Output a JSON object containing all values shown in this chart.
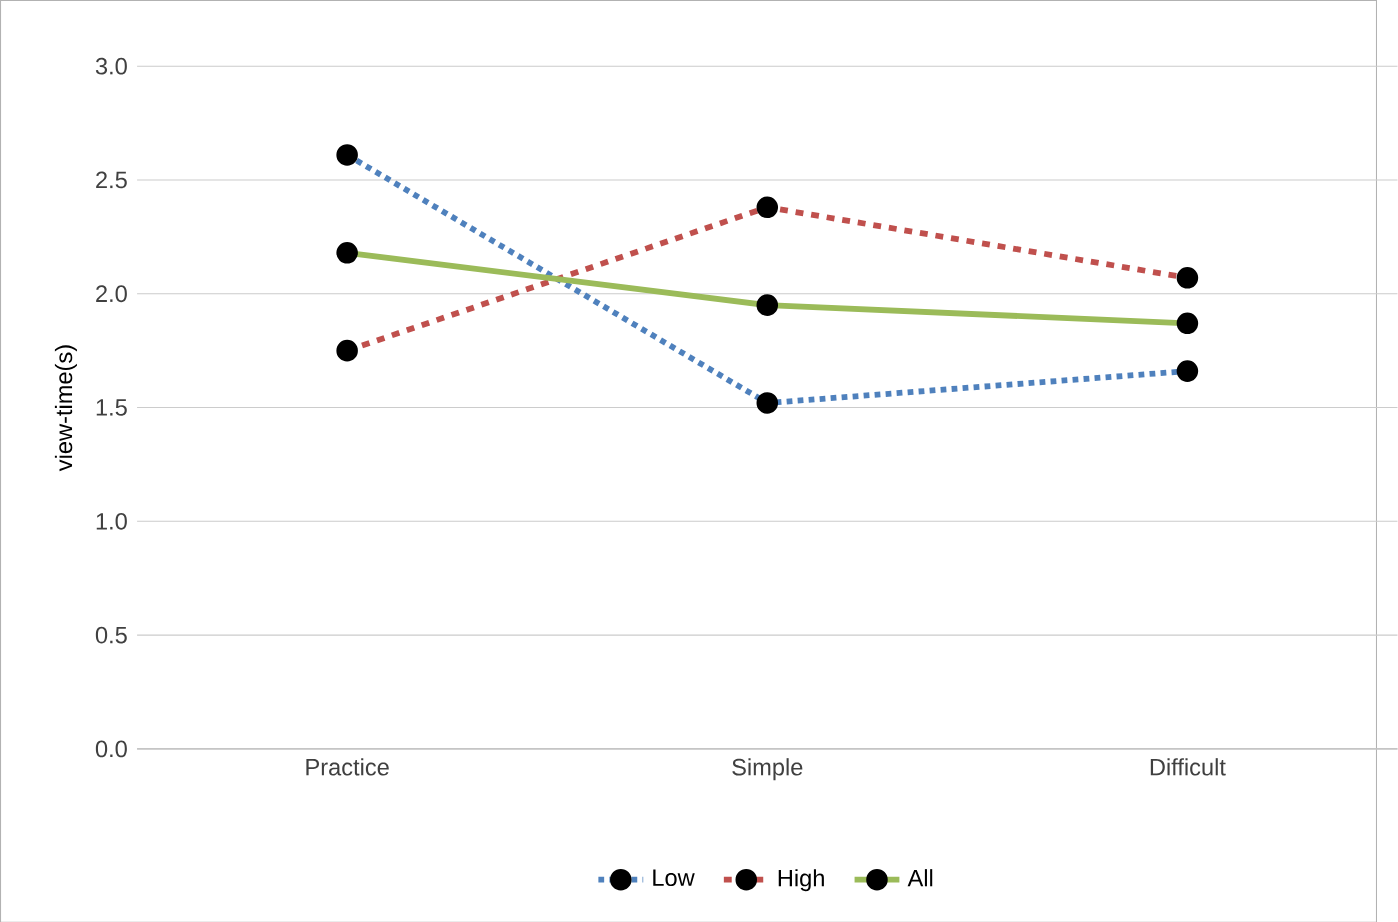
{
  "chart_data": {
    "type": "line",
    "ylabel": "view-time(s)",
    "categories": [
      "Practice",
      "Simple",
      "Difficult"
    ],
    "series": [
      {
        "name": "Low",
        "color": "#4f81bd",
        "line_style": "dotted",
        "values": [
          2.61,
          1.52,
          1.66
        ]
      },
      {
        "name": "High",
        "color": "#c0504d",
        "line_style": "dashed",
        "values": [
          1.75,
          2.38,
          2.07
        ]
      },
      {
        "name": "All",
        "color": "#9bbb59",
        "line_style": "solid",
        "values": [
          2.18,
          1.95,
          1.87
        ]
      }
    ],
    "ylim": [
      0,
      3
    ],
    "yticks": [
      {
        "value": 0,
        "label": "0.0"
      },
      {
        "value": 0.5,
        "label": "0.5"
      },
      {
        "value": 1,
        "label": "1.0"
      },
      {
        "value": 1.5,
        "label": "1.5"
      },
      {
        "value": 2,
        "label": "2.0"
      },
      {
        "value": 2.5,
        "label": "2.5"
      },
      {
        "value": 3,
        "label": "3.0"
      }
    ],
    "grid": "y",
    "legend": "bottom",
    "marker": "circle"
  }
}
